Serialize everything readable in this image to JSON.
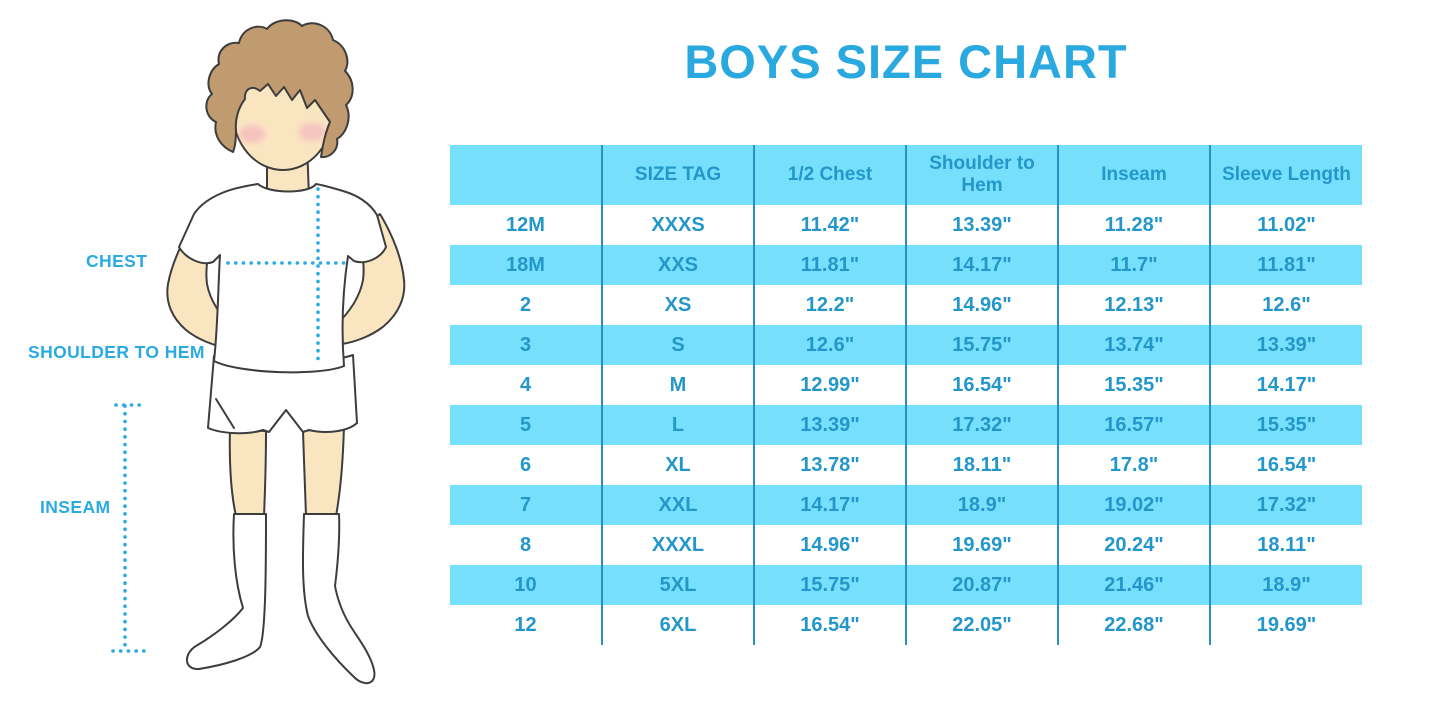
{
  "page": {
    "title": "BOYS SIZE CHART"
  },
  "figure": {
    "description": "boy-mannequin-measurement-illustration",
    "labels": {
      "chest": "CHEST",
      "shoulder_to_hem": "SHOULDER TO HEM",
      "inseam": "INSEAM"
    }
  },
  "chart_data": {
    "type": "table",
    "title": "BOYS SIZE CHART",
    "columns": [
      "",
      "SIZE TAG",
      "1/2 Chest",
      "Shoulder to Hem",
      "Inseam",
      "Sleeve Length"
    ],
    "rows": [
      [
        "12M",
        "XXXS",
        "11.42\"",
        "13.39\"",
        "11.28\"",
        "11.02\""
      ],
      [
        "18M",
        "XXS",
        "11.81\"",
        "14.17\"",
        "11.7\"",
        "11.81\""
      ],
      [
        "2",
        "XS",
        "12.2\"",
        "14.96\"",
        "12.13\"",
        "12.6\""
      ],
      [
        "3",
        "S",
        "12.6\"",
        "15.75\"",
        "13.74\"",
        "13.39\""
      ],
      [
        "4",
        "M",
        "12.99\"",
        "16.54\"",
        "15.35\"",
        "14.17\""
      ],
      [
        "5",
        "L",
        "13.39\"",
        "17.32\"",
        "16.57\"",
        "15.35\""
      ],
      [
        "6",
        "XL",
        "13.78\"",
        "18.11\"",
        "17.8\"",
        "16.54\""
      ],
      [
        "7",
        "XXL",
        "14.17\"",
        "18.9\"",
        "19.02\"",
        "17.32\""
      ],
      [
        "8",
        "XXXL",
        "14.96\"",
        "19.69\"",
        "20.24\"",
        "18.11\""
      ],
      [
        "10",
        "5XL",
        "15.75\"",
        "20.87\"",
        "21.46\"",
        "18.9\""
      ],
      [
        "12",
        "6XL",
        "16.54\"",
        "22.05\"",
        "22.68\"",
        "19.69\""
      ]
    ],
    "layout": {
      "header_fill": "#76dffb",
      "row_alt_fill": "#76dffb",
      "row_base_fill": "#ffffff",
      "divider_color": "#2b90c0",
      "text_color": "#2497ca",
      "striping": "header blue, then rows alternate white/blue starting white"
    }
  },
  "colors": {
    "accent": "#29abe2",
    "title": "#29a9df",
    "table_text": "#2497ca",
    "row_fill": "#76dffb",
    "divider": "#2b90c0",
    "skin": "#fae5c1",
    "hair": "#bf9b6f",
    "cheek": "#f3a8bc"
  }
}
